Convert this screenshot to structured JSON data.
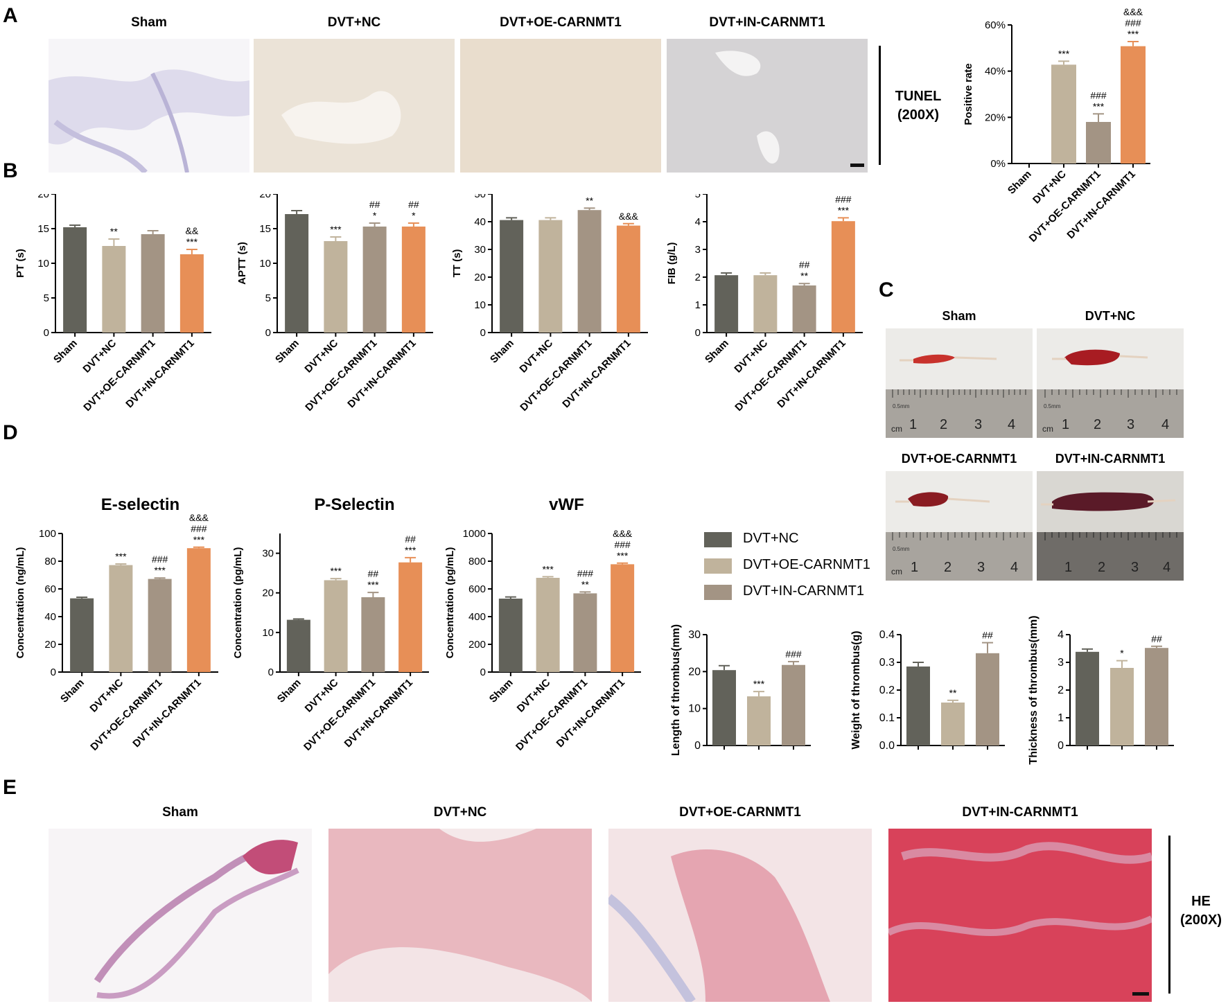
{
  "panels": {
    "A": "A",
    "B": "B",
    "C": "C",
    "D": "D",
    "E": "E"
  },
  "colors": {
    "sham": "#62625a",
    "nc": "#c0b39c",
    "oe": "#a39484",
    "in": "#e78f57",
    "tunel_bg": "#eee8df",
    "he_bg": "#e9b8bf"
  },
  "tunel": {
    "titles": [
      "Sham",
      "DVT+NC",
      "DVT+OE-CARNMT1",
      "DVT+IN-CARNMT1"
    ],
    "side_label_line1": "TUNEL",
    "side_label_line2": "(200X)"
  },
  "he": {
    "titles": [
      "Sham",
      "DVT+NC",
      "DVT+OE-CARNMT1",
      "DVT+IN-CARNMT1"
    ],
    "side_label_line1": "HE",
    "side_label_line2": "(200X)"
  },
  "photos": {
    "titles": [
      "Sham",
      "DVT+NC",
      "DVT+OE-CARNMT1",
      "DVT+IN-CARNMT1"
    ],
    "ruler_numbers": [
      "1",
      "2",
      "3",
      "4"
    ],
    "ruler_unit": "cm",
    "ruler_mark": "0.5mm"
  },
  "legend": {
    "entries": [
      "DVT+NC",
      "DVT+OE-CARNMT1",
      "DVT+IN-CARNMT1"
    ]
  },
  "chart_data": [
    {
      "id": "positive-rate",
      "type": "bar",
      "title": "",
      "ylabel": "Positive rate",
      "ylim": [
        0,
        60
      ],
      "yticks": [
        0,
        20,
        40,
        60
      ],
      "ytick_labels": [
        "0%",
        "20%",
        "40%",
        "60%"
      ],
      "categories": [
        "Sham",
        "DVT+NC",
        "DVT+OE-CARNMT1",
        "DVT+IN-CARNMT1"
      ],
      "values": [
        0,
        42.8,
        18.0,
        50.8
      ],
      "errors": [
        0,
        1.5,
        3.5,
        2.0
      ],
      "annotations": [
        [],
        [
          "***"
        ],
        [
          "###",
          "***"
        ],
        [
          "&&&",
          "###",
          "***"
        ]
      ],
      "colors": [
        "#62625a",
        "#c0b39c",
        "#a39484",
        "#e78f57"
      ]
    },
    {
      "id": "pt",
      "type": "bar",
      "title": "",
      "ylabel": "PT (s)",
      "ylim": [
        0,
        20
      ],
      "yticks": [
        0,
        5,
        10,
        15,
        20
      ],
      "ytick_labels": [
        "0",
        "5",
        "10",
        "15",
        "20"
      ],
      "categories": [
        "Sham",
        "DVT+NC",
        "DVT+OE-CARNMT1",
        "DVT+IN-CARNMT1"
      ],
      "values": [
        15.2,
        12.5,
        14.2,
        11.3
      ],
      "errors": [
        0.3,
        1.0,
        0.5,
        0.7
      ],
      "annotations": [
        [],
        [
          "**"
        ],
        [],
        [
          "&&",
          "***"
        ]
      ],
      "colors": [
        "#62625a",
        "#c0b39c",
        "#a39484",
        "#e78f57"
      ]
    },
    {
      "id": "aptt",
      "type": "bar",
      "title": "",
      "ylabel": "APTT (s)",
      "ylim": [
        0,
        20
      ],
      "yticks": [
        0,
        5,
        10,
        15,
        20
      ],
      "ytick_labels": [
        "0",
        "5",
        "10",
        "15",
        "20"
      ],
      "categories": [
        "Sham",
        "DVT+NC",
        "DVT+OE-CARNMT1",
        "DVT+IN-CARNMT1"
      ],
      "values": [
        17.1,
        13.2,
        15.3,
        15.3
      ],
      "errors": [
        0.5,
        0.6,
        0.5,
        0.5
      ],
      "annotations": [
        [],
        [
          "***"
        ],
        [
          "##",
          "*"
        ],
        [
          "##",
          "*"
        ]
      ],
      "colors": [
        "#62625a",
        "#c0b39c",
        "#a39484",
        "#e78f57"
      ]
    },
    {
      "id": "tt",
      "type": "bar",
      "title": "",
      "ylabel": "TT (s)",
      "ylim": [
        0,
        50
      ],
      "yticks": [
        0,
        10,
        20,
        30,
        40,
        50
      ],
      "ytick_labels": [
        "0",
        "10",
        "20",
        "30",
        "40",
        "50"
      ],
      "categories": [
        "Sham",
        "DVT+NC",
        "DVT+OE-CARNMT1",
        "DVT+IN-CARNMT1"
      ],
      "values": [
        40.6,
        40.6,
        44.2,
        38.6
      ],
      "errors": [
        0.8,
        0.8,
        0.7,
        0.7
      ],
      "annotations": [
        [],
        [],
        [
          "##",
          "**"
        ],
        [
          "&&&"
        ]
      ],
      "colors": [
        "#62625a",
        "#c0b39c",
        "#a39484",
        "#e78f57"
      ]
    },
    {
      "id": "fib",
      "type": "bar",
      "title": "",
      "ylabel": "FIB (g/L)",
      "ylim": [
        0,
        5
      ],
      "yticks": [
        0,
        1,
        2,
        3,
        4,
        5
      ],
      "ytick_labels": [
        "0",
        "1",
        "2",
        "3",
        "4",
        "5"
      ],
      "categories": [
        "Sham",
        "DVT+NC",
        "DVT+OE-CARNMT1",
        "DVT+IN-CARNMT1"
      ],
      "values": [
        2.07,
        2.07,
        1.7,
        4.02
      ],
      "errors": [
        0.08,
        0.08,
        0.07,
        0.12
      ],
      "annotations": [
        [],
        [],
        [
          "##",
          "**"
        ],
        [
          "&&&",
          "###",
          "***"
        ]
      ],
      "colors": [
        "#62625a",
        "#c0b39c",
        "#a39484",
        "#e78f57"
      ]
    },
    {
      "id": "e-selectin",
      "type": "bar",
      "title": "E-selectin",
      "ylabel": "Concentration (ng/mL)",
      "ylim": [
        0,
        100
      ],
      "yticks": [
        0,
        20,
        40,
        60,
        80,
        100
      ],
      "ytick_labels": [
        "0",
        "20",
        "40",
        "60",
        "80",
        "100"
      ],
      "categories": [
        "Sham",
        "DVT+NC",
        "DVT+OE-CARNMT1",
        "DVT+IN-CARNMT1"
      ],
      "values": [
        53.2,
        77.2,
        67.2,
        89.4
      ],
      "errors": [
        0.8,
        0.8,
        0.7,
        0.7
      ],
      "annotations": [
        [],
        [
          "***"
        ],
        [
          "###",
          "***"
        ],
        [
          "&&&",
          "###",
          "***"
        ]
      ],
      "colors": [
        "#62625a",
        "#c0b39c",
        "#a39484",
        "#e78f57"
      ]
    },
    {
      "id": "p-selectin",
      "type": "bar",
      "title": "P-Selectin",
      "ylabel": "Concentration (pg/mL)",
      "ylim": [
        0,
        35
      ],
      "yticks": [
        0,
        10,
        20,
        30
      ],
      "ytick_labels": [
        "0",
        "10",
        "20",
        "30"
      ],
      "categories": [
        "Sham",
        "DVT+NC",
        "DVT+OE-CARNMT1",
        "DVT+IN-CARNMT1"
      ],
      "values": [
        13.2,
        23.2,
        18.9,
        27.7
      ],
      "errors": [
        0.2,
        0.4,
        1.2,
        1.2
      ],
      "annotations": [
        [],
        [
          "***"
        ],
        [
          "##",
          "***"
        ],
        [
          "##",
          "***"
        ]
      ],
      "colors": [
        "#62625a",
        "#c0b39c",
        "#a39484",
        "#e78f57"
      ]
    },
    {
      "id": "vwf",
      "type": "bar",
      "title": "vWF",
      "ylabel": "Concentration (pg/mL)",
      "ylim": [
        0,
        1000
      ],
      "yticks": [
        0,
        200,
        400,
        600,
        800,
        1000
      ],
      "ytick_labels": [
        "0",
        "200",
        "400",
        "600",
        "800",
        "1000"
      ],
      "categories": [
        "Sham",
        "DVT+NC",
        "DVT+OE-CARNMT1",
        "DVT+IN-CARNMT1"
      ],
      "values": [
        530,
        680,
        568,
        778
      ],
      "errors": [
        12,
        8,
        10,
        8
      ],
      "annotations": [
        [],
        [
          "***"
        ],
        [
          "###",
          "**"
        ],
        [
          "&&&",
          "###",
          "***"
        ]
      ],
      "colors": [
        "#62625a",
        "#c0b39c",
        "#a39484",
        "#e78f57"
      ]
    },
    {
      "id": "length",
      "type": "bar",
      "title": "",
      "ylabel": "Length of thrombus(mm)",
      "ylim": [
        0,
        30
      ],
      "yticks": [
        0,
        10,
        20,
        30
      ],
      "ytick_labels": [
        "0",
        "10",
        "20",
        "30"
      ],
      "categories": [
        "DVT+NC",
        "DVT+OE-CARNMT1",
        "DVT+IN-CARNMT1"
      ],
      "values": [
        20.4,
        13.3,
        21.8
      ],
      "errors": [
        1.2,
        1.3,
        0.9
      ],
      "annotations": [
        [],
        [
          "***"
        ],
        [
          "###"
        ]
      ],
      "colors": [
        "#62625a",
        "#c0b39c",
        "#a39484"
      ]
    },
    {
      "id": "weight",
      "type": "bar",
      "title": "",
      "ylabel": "Weight of thrombus(g)",
      "ylim": [
        0,
        0.4
      ],
      "yticks": [
        0,
        0.1,
        0.2,
        0.3,
        0.4
      ],
      "ytick_labels": [
        "0.0",
        "0.1",
        "0.2",
        "0.3",
        "0.4"
      ],
      "categories": [
        "DVT+NC",
        "DVT+OE-CARNMT1",
        "DVT+IN-CARNMT1"
      ],
      "values": [
        0.285,
        0.155,
        0.333
      ],
      "errors": [
        0.015,
        0.008,
        0.038
      ],
      "annotations": [
        [],
        [
          "**"
        ],
        [
          "##"
        ]
      ],
      "colors": [
        "#62625a",
        "#c0b39c",
        "#a39484"
      ]
    },
    {
      "id": "thickness",
      "type": "bar",
      "title": "",
      "ylabel": "Thickness of thrombus(mm)",
      "ylim": [
        0,
        4
      ],
      "yticks": [
        0,
        1,
        2,
        3,
        4
      ],
      "ytick_labels": [
        "0",
        "1",
        "2",
        "3",
        "4"
      ],
      "categories": [
        "DVT+NC",
        "DVT+OE-CARNMT1",
        "DVT+IN-CARNMT1"
      ],
      "values": [
        3.38,
        2.8,
        3.52
      ],
      "errors": [
        0.1,
        0.26,
        0.06
      ],
      "annotations": [
        [],
        [
          "*"
        ],
        [
          "##"
        ]
      ],
      "colors": [
        "#62625a",
        "#c0b39c",
        "#a39484"
      ]
    }
  ]
}
